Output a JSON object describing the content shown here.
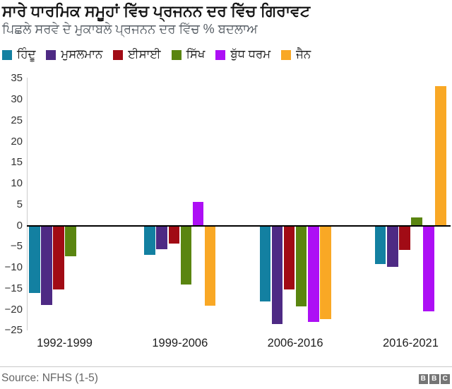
{
  "header": {
    "title": "ਸਾਰੇ ਧਾਰਮਿਕ ਸਮੂਹਾਂ ਵਿੱਚ ਪ੍ਰਜਨਨ ਦਰ ਵਿੱਚ ਗਿਰਾਵਟ",
    "subtitle": "ਪਿਛਲੇ ਸਰਵੇ ਦੇ ਮੁਕਾਬਲੇ ਪ੍ਰਜਨਨ ਦਰ ਵਿੱਚ % ਬਦਲਾਅ"
  },
  "footer": {
    "source": "Source: NFHS (1-5)",
    "logo_letters": [
      "B",
      "B",
      "C"
    ]
  },
  "chart_data": {
    "type": "bar",
    "title": "ਸਾਰੇ ਧਾਰਮਿਕ ਸਮੂਹਾਂ ਵਿੱਚ ਪ੍ਰਜਨਨ ਦਰ ਵਿੱਚ ਗਿਰਾਵਟ",
    "subtitle": "ਪਿਛਲੇ ਸਰਵੇ ਦੇ ਮੁਕਾਬਲੇ ਪ੍ਰਜਨਨ ਦਰ ਵਿੱਚ % ਬਦਲਾਅ",
    "xlabel": "",
    "ylabel": "",
    "categories": [
      "1992-1999",
      "1999-2006",
      "2006-2016",
      "2016-2021"
    ],
    "series": [
      {
        "name": "ਹਿੰਦੂ",
        "color": "#1380a1",
        "values": [
          -15.8,
          -6.8,
          -17.8,
          -8.9
        ]
      },
      {
        "name": "ਮੁਸਲਮਾਨ",
        "color": "#4e2a84",
        "values": [
          -18.6,
          -5.3,
          -23.2,
          -9.6
        ]
      },
      {
        "name": "ਈਸਾਈ",
        "color": "#a10b15",
        "values": [
          -15.0,
          -4.1,
          -15.0,
          -5.5
        ]
      },
      {
        "name": "ਸਿੱਖ",
        "color": "#5a8510",
        "values": [
          -7.0,
          -13.7,
          -19.0,
          1.9
        ]
      },
      {
        "name": "ਬੁੱਧ ਧਰਮ",
        "color": "#ad0ff5",
        "values": [
          null,
          5.6,
          -22.7,
          -20.1
        ]
      },
      {
        "name": "ਜੈਨ",
        "color": "#f9a825",
        "values": [
          null,
          -18.9,
          -22.1,
          33.3
        ]
      }
    ],
    "ylim": [
      -25,
      35
    ],
    "ytick_step": 5,
    "grid": false,
    "legend_position": "top",
    "zero_line": true
  }
}
